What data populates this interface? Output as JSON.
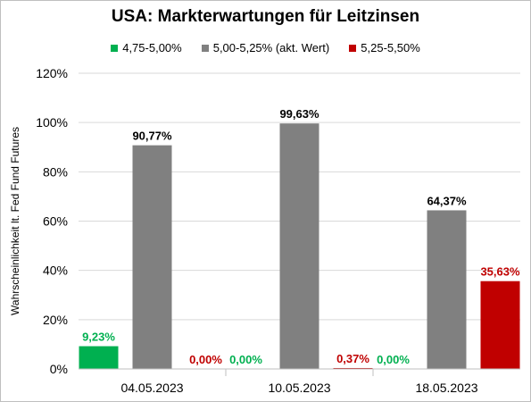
{
  "chart_data": {
    "type": "bar",
    "title": "USA: Markterwartungen für Leitzinsen",
    "ylabel": "Wahrscheinlichkeit lt. Fed Fund Futures",
    "xlabel": "",
    "ylim": [
      0,
      120
    ],
    "yticks": [
      0,
      20,
      40,
      60,
      80,
      100,
      120
    ],
    "ytick_labels": [
      "0%",
      "20%",
      "40%",
      "60%",
      "80%",
      "100%",
      "120%"
    ],
    "grid": true,
    "legend_position": "top",
    "categories": [
      "04.05.2023",
      "10.05.2023",
      "18.05.2023"
    ],
    "series": [
      {
        "name": "4,75-5,00%",
        "color": "#00b050",
        "label_color": "#00b050",
        "values": [
          9.23,
          0.0,
          0.0
        ],
        "labels": [
          "9,23%",
          "0,00%",
          "0,00%"
        ]
      },
      {
        "name": "5,00-5,25% (akt. Wert)",
        "color": "#808080",
        "label_color": "#000000",
        "values": [
          90.77,
          99.63,
          64.37
        ],
        "labels": [
          "90,77%",
          "99,63%",
          "64,37%"
        ]
      },
      {
        "name": "5,25-5,50%",
        "color": "#c00000",
        "label_color": "#c00000",
        "values": [
          0.0,
          0.37,
          35.63
        ],
        "labels": [
          "0,00%",
          "0,37%",
          "35,63%"
        ]
      }
    ]
  }
}
